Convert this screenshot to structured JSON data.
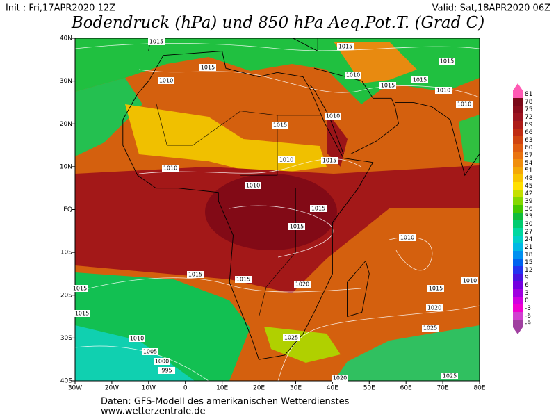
{
  "header": {
    "init": "Init : Fri,17APR2020 12Z",
    "valid": "Valid: Sat,18APR2020 06Z",
    "title": "Bodendruck (hPa) und 850 hPa Aeq.Pot.T. (Grad C)"
  },
  "map": {
    "lon_range": [
      -30,
      80
    ],
    "lat_range": [
      -40,
      40
    ],
    "lon_ticks": [
      {
        "value": -30,
        "label": "30W"
      },
      {
        "value": -20,
        "label": "20W"
      },
      {
        "value": -10,
        "label": "10W"
      },
      0,
      {
        "value": 10,
        "label": "10E"
      },
      {
        "value": 20,
        "label": "20E"
      },
      {
        "value": 30,
        "label": "30E"
      },
      {
        "value": 40,
        "label": "40E"
      },
      {
        "value": 50,
        "label": "50E"
      },
      {
        "value": 60,
        "label": "60E"
      },
      {
        "value": 70,
        "label": "70E"
      },
      {
        "value": 80,
        "label": "80E"
      }
    ],
    "lat_ticks": [
      {
        "value": 40,
        "label": "40N"
      },
      {
        "value": 30,
        "label": "30N"
      },
      {
        "value": 20,
        "label": "20N"
      },
      {
        "value": 10,
        "label": "10N"
      },
      {
        "value": 0,
        "label": "EQ"
      },
      {
        "value": -10,
        "label": "10S"
      },
      {
        "value": -20,
        "label": "20S"
      },
      {
        "value": -30,
        "label": "30S"
      },
      {
        "value": -40,
        "label": "40S"
      }
    ],
    "isobar_labels": [
      "1015",
      "1015",
      "1015",
      "1010",
      "1010",
      "1015",
      "1015",
      "1015",
      "1010",
      "1010",
      "1010",
      "1015",
      "1010",
      "1010",
      "1015",
      "1010",
      "1015",
      "1015",
      "1010",
      "1015",
      "1015",
      "1020",
      "1015",
      "1010",
      "1020",
      "1025",
      "1025",
      "1010",
      "1005",
      "1000",
      "995",
      "1025",
      "1020",
      "1015",
      "1015"
    ]
  },
  "colorbar": {
    "ticks": [
      81,
      78,
      75,
      72,
      69,
      66,
      63,
      60,
      57,
      54,
      51,
      48,
      45,
      42,
      39,
      36,
      33,
      30,
      27,
      24,
      21,
      18,
      15,
      12,
      9,
      6,
      3,
      0,
      -3,
      -6,
      -9
    ],
    "colors": [
      "#ff5ab4",
      "#7a0818",
      "#8a0c1c",
      "#9c1420",
      "#ae1c18",
      "#c02c12",
      "#d04410",
      "#e05c10",
      "#ea7410",
      "#f08e0c",
      "#f4a806",
      "#f8c400",
      "#ffe000",
      "#c4e000",
      "#84d800",
      "#44c800",
      "#10bc3c",
      "#00cc70",
      "#00d8a0",
      "#00d0c8",
      "#00b8e4",
      "#0090f0",
      "#0064f0",
      "#2434f0",
      "#4814e0",
      "#7400e0",
      "#a000e0",
      "#d000e0",
      "#f000d0",
      "#d040d0",
      "#a040a0"
    ]
  },
  "footer": {
    "source": "Daten: GFS-Modell des amerikanischen Wetterdienstes",
    "url": "www.wetterzentrale.de"
  }
}
